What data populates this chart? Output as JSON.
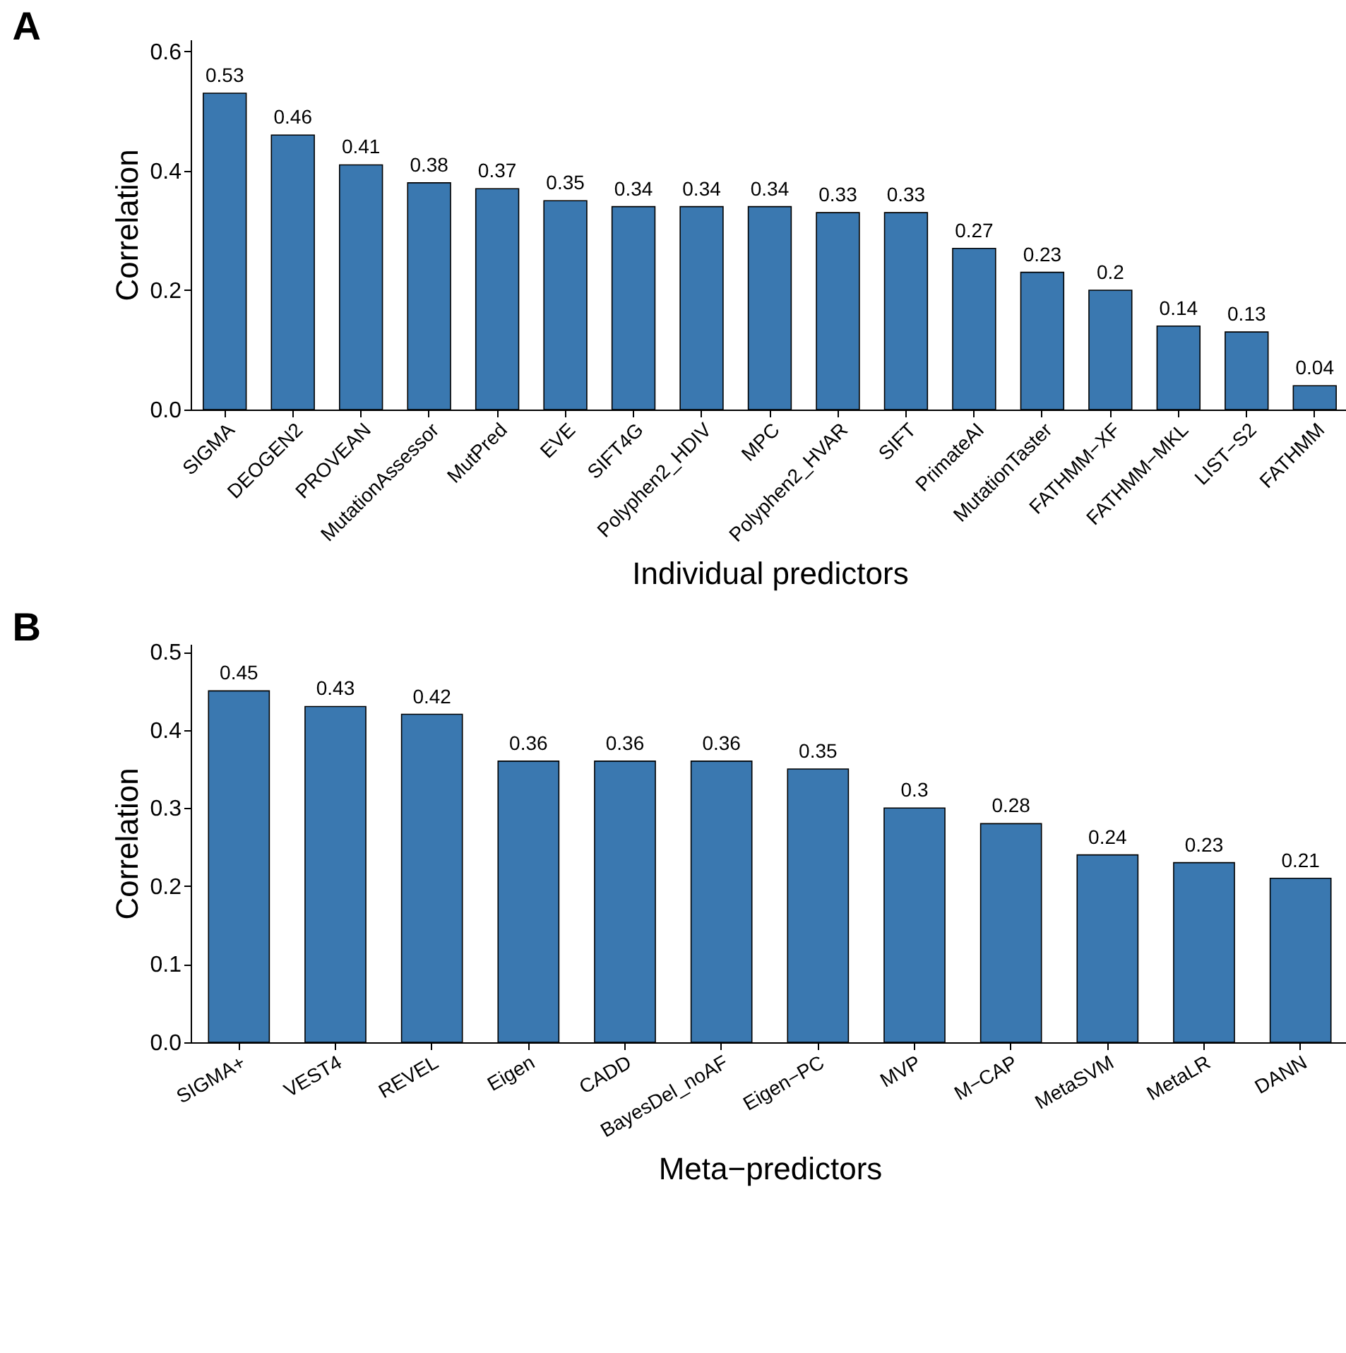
{
  "chart_data": [
    {
      "type": "bar",
      "title": "A",
      "xlabel": "Individual predictors",
      "ylabel": "Correlation",
      "categories": [
        "SIGMA",
        "DEOGEN2",
        "PROVEAN",
        "MutationAssessor",
        "MutPred",
        "EVE",
        "SIFT4G",
        "Polyphen2_HDIV",
        "MPC",
        "Polyphen2_HVAR",
        "SIFT",
        "PrimateAI",
        "MutationTaster",
        "FATHMM−XF",
        "FATHMM−MKL",
        "LIST−S2",
        "FATHMM"
      ],
      "values": [
        0.53,
        0.46,
        0.41,
        0.38,
        0.37,
        0.35,
        0.34,
        0.34,
        0.34,
        0.33,
        0.33,
        0.27,
        0.23,
        0.2,
        0.14,
        0.13,
        0.04
      ],
      "color": "#3a78b0",
      "ylim": [
        0,
        0.62
      ],
      "yticks": [
        {
          "value": 0,
          "label": "0.0"
        },
        {
          "value": 0.2,
          "label": "0.2"
        },
        {
          "value": 0.4,
          "label": "0.4"
        },
        {
          "value": 0.6,
          "label": "0.6"
        }
      ],
      "data_labels": true
    },
    {
      "type": "bar",
      "title": "B",
      "xlabel": "Meta−predictors",
      "ylabel": "Correlation",
      "categories": [
        "SIGMA+",
        "VEST4",
        "REVEL",
        "Eigen",
        "CADD",
        "BayesDel_noAF",
        "Eigen−PC",
        "MVP",
        "M−CAP",
        "MetaSVM",
        "MetaLR",
        "DANN"
      ],
      "values": [
        0.45,
        0.43,
        0.42,
        0.36,
        0.36,
        0.36,
        0.35,
        0.3,
        0.28,
        0.24,
        0.23,
        0.21
      ],
      "color": "#3a78b0",
      "ylim": [
        0,
        0.51
      ],
      "yticks": [
        {
          "value": 0,
          "label": "0.0"
        },
        {
          "value": 0.1,
          "label": "0.1"
        },
        {
          "value": 0.2,
          "label": "0.2"
        },
        {
          "value": 0.3,
          "label": "0.3"
        },
        {
          "value": 0.4,
          "label": "0.4"
        },
        {
          "value": 0.5,
          "label": "0.5"
        }
      ],
      "data_labels": true
    }
  ]
}
